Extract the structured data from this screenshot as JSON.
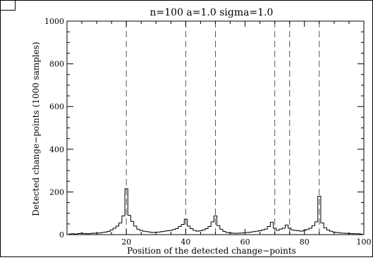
{
  "chart_data": {
    "type": "line",
    "title": "n=100 a=1.0 sigma=1.0",
    "xlabel": "Position of the detected change−points",
    "ylabel": "Detected change−points (1000 samples)",
    "xlim": [
      0,
      100
    ],
    "ylim": [
      0,
      1000
    ],
    "xticks": [
      20,
      40,
      60,
      80,
      100
    ],
    "yticks": [
      0,
      200,
      400,
      600,
      800,
      1000
    ],
    "true_change_points": [
      20,
      40,
      50,
      70,
      75,
      85
    ],
    "series": [
      {
        "style": "histogram-steps",
        "x": [
          1,
          2,
          3,
          4,
          5,
          6,
          7,
          8,
          9,
          10,
          11,
          12,
          13,
          14,
          15,
          16,
          17,
          18,
          19,
          20,
          21,
          22,
          23,
          24,
          25,
          26,
          27,
          28,
          29,
          30,
          31,
          32,
          33,
          34,
          35,
          36,
          37,
          38,
          39,
          40,
          41,
          42,
          43,
          44,
          45,
          46,
          47,
          48,
          49,
          50,
          51,
          52,
          53,
          54,
          55,
          56,
          57,
          58,
          59,
          60,
          61,
          62,
          63,
          64,
          65,
          66,
          67,
          68,
          69,
          70,
          71,
          72,
          73,
          74,
          75,
          76,
          77,
          78,
          79,
          80,
          81,
          82,
          83,
          84,
          85,
          86,
          87,
          88,
          89,
          90,
          91,
          92,
          93,
          94,
          95,
          96,
          97,
          98,
          99
        ],
        "values": [
          3,
          4,
          3,
          5,
          6,
          5,
          4,
          5,
          7,
          6,
          8,
          10,
          12,
          15,
          22,
          30,
          40,
          55,
          88,
          215,
          90,
          62,
          40,
          25,
          20,
          16,
          14,
          12,
          10,
          11,
          12,
          14,
          16,
          18,
          20,
          24,
          28,
          38,
          48,
          72,
          40,
          28,
          20,
          16,
          18,
          22,
          28,
          38,
          60,
          88,
          42,
          25,
          15,
          10,
          8,
          7,
          6,
          7,
          8,
          9,
          10,
          12,
          14,
          16,
          18,
          22,
          26,
          38,
          58,
          30,
          20,
          26,
          30,
          45,
          30,
          22,
          20,
          18,
          16,
          20,
          24,
          30,
          42,
          60,
          180,
          55,
          32,
          22,
          16,
          12,
          10,
          8,
          7,
          6,
          5,
          5,
          4,
          4,
          3
        ]
      }
    ]
  }
}
